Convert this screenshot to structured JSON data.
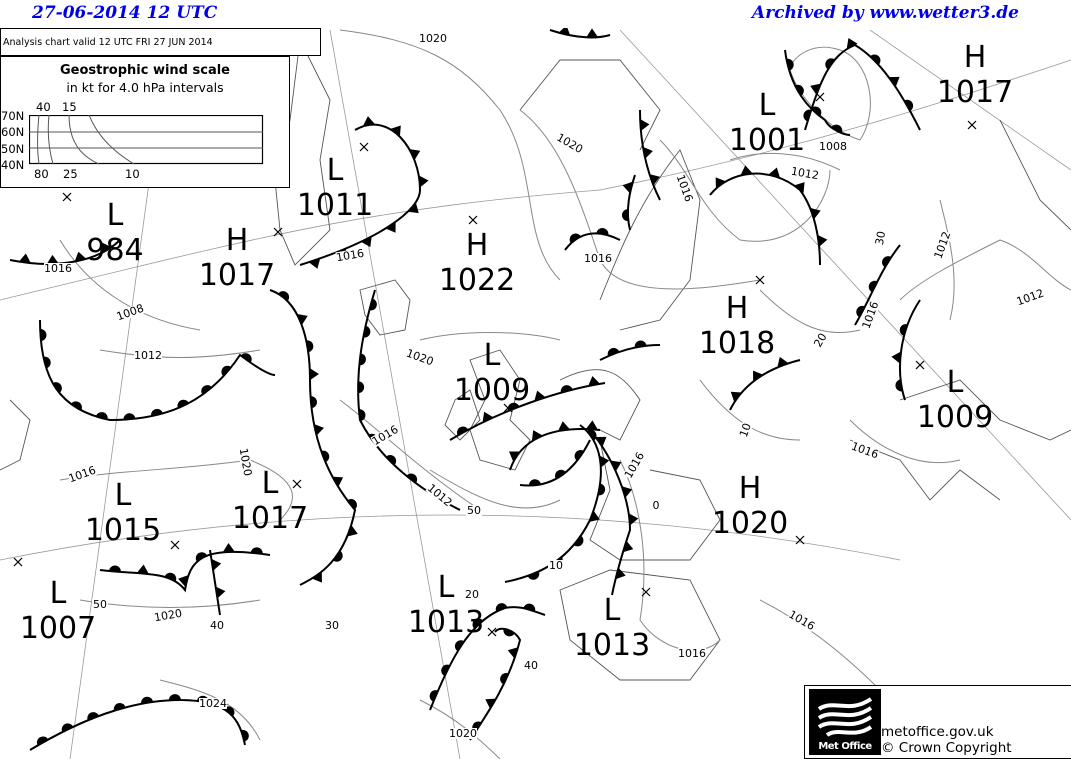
{
  "header": {
    "date_time": "27-06-2014   12 UTC",
    "archive": "Archived by www.wetter3.de"
  },
  "chart_title": "Analysis chart  valid 12 UTC FRI 27  JUN 2014",
  "wind_scale": {
    "title": "Geostrophic wind scale",
    "subtitle": "in kt for 4.0 hPa intervals",
    "lat_labels": [
      "70N",
      "60N",
      "50N",
      "40N"
    ],
    "top_labels": [
      "40",
      "15"
    ],
    "bottom_labels": [
      "80",
      "25",
      "10"
    ]
  },
  "pressure_centers": [
    {
      "type": "L",
      "value": "984"
    },
    {
      "type": "H",
      "value": "1017"
    },
    {
      "type": "L",
      "value": "1011"
    },
    {
      "type": "H",
      "value": "1022"
    },
    {
      "type": "L",
      "value": "1009"
    },
    {
      "type": "L",
      "value": "1001"
    },
    {
      "type": "H",
      "value": "1017"
    },
    {
      "type": "H",
      "value": "1018"
    },
    {
      "type": "L",
      "value": "1009"
    },
    {
      "type": "L",
      "value": "1015"
    },
    {
      "type": "L",
      "value": "1017"
    },
    {
      "type": "L",
      "value": "1007"
    },
    {
      "type": "L",
      "value": "1013"
    },
    {
      "type": "L",
      "value": "1013"
    },
    {
      "type": "H",
      "value": "1020"
    }
  ],
  "isobar_labels": [
    "1020",
    "1020",
    "1016",
    "1012",
    "1008",
    "1016",
    "1016",
    "1008",
    "1012",
    "1020",
    "1016",
    "1012",
    "50",
    "1016",
    "1020",
    "1016",
    "0",
    "10",
    "1020",
    "50",
    "40",
    "30",
    "20",
    "40",
    "1016",
    "1016",
    "1016",
    "10",
    "20",
    "1016",
    "30",
    "1012",
    "1012",
    "1024",
    "1020",
    "1016"
  ],
  "logo": {
    "name": "Met Office",
    "site": "metoffice.gov.uk",
    "copyright": "© Crown Copyright"
  }
}
